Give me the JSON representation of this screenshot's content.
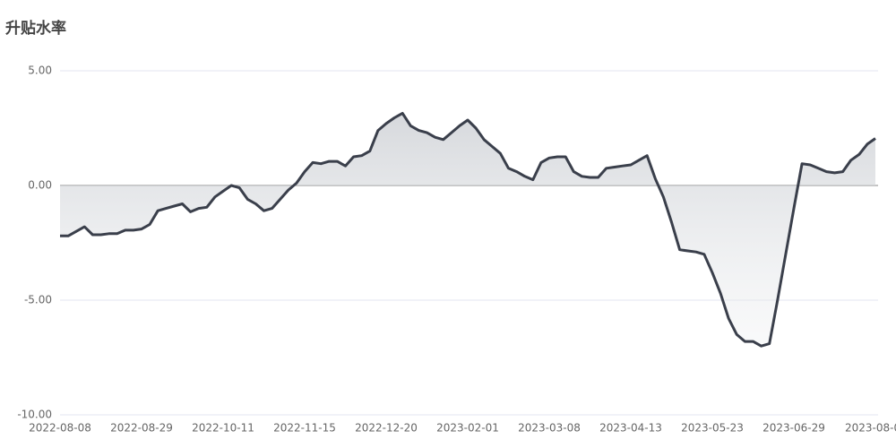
{
  "chart_data": {
    "type": "area-line",
    "title": "升贴水率",
    "categories": [
      "2022-08-08",
      null,
      null,
      null,
      null,
      null,
      null,
      null,
      null,
      null,
      "2022-08-29",
      null,
      null,
      null,
      null,
      null,
      null,
      null,
      null,
      null,
      "2022-10-11",
      null,
      null,
      null,
      null,
      null,
      null,
      null,
      null,
      null,
      "2022-11-15",
      null,
      null,
      null,
      null,
      null,
      null,
      null,
      null,
      null,
      "2022-12-20",
      null,
      null,
      null,
      null,
      null,
      null,
      null,
      null,
      null,
      "2023-02-01",
      null,
      null,
      null,
      null,
      null,
      null,
      null,
      null,
      null,
      "2023-03-08",
      null,
      null,
      null,
      null,
      null,
      null,
      null,
      null,
      null,
      "2023-04-13",
      null,
      null,
      null,
      null,
      null,
      null,
      null,
      null,
      null,
      "2023-05-23",
      null,
      null,
      null,
      null,
      null,
      null,
      null,
      null,
      null,
      "2023-06-29",
      null,
      null,
      null,
      null,
      null,
      null,
      null,
      null,
      null,
      "2023-08-0"
    ],
    "values": [
      -2.2,
      -2.2,
      -2.0,
      -1.8,
      -2.15,
      -2.15,
      -2.1,
      -2.1,
      -1.95,
      -1.95,
      -1.9,
      -1.7,
      -1.1,
      -1.0,
      -0.9,
      -0.8,
      -1.15,
      -1.0,
      -0.95,
      -0.5,
      -0.25,
      0.0,
      -0.1,
      -0.6,
      -0.8,
      -1.1,
      -1.0,
      -0.6,
      -0.2,
      0.1,
      0.6,
      1.0,
      0.95,
      1.05,
      1.05,
      0.85,
      1.25,
      1.3,
      1.5,
      2.4,
      2.7,
      2.95,
      3.15,
      2.6,
      2.4,
      2.3,
      2.1,
      2.0,
      2.3,
      2.6,
      2.85,
      2.5,
      2.0,
      1.7,
      1.4,
      0.75,
      0.6,
      0.4,
      0.25,
      1.0,
      1.2,
      1.25,
      1.25,
      0.6,
      0.4,
      0.35,
      0.35,
      0.75,
      0.8,
      0.85,
      0.9,
      1.1,
      1.3,
      0.3,
      -0.5,
      -1.6,
      -2.8,
      -2.85,
      -2.9,
      -3.0,
      -3.8,
      -4.7,
      -5.8,
      -6.5,
      -6.8,
      -6.8,
      -7.0,
      -6.9,
      -5.0,
      -3.0,
      -1.0,
      0.95,
      0.9,
      0.75,
      0.6,
      0.55,
      0.6,
      1.1,
      1.35,
      1.8,
      2.05
    ],
    "color": "#3a3f4b",
    "ylim": [
      -10,
      5
    ],
    "yticks": [
      {
        "value": -10,
        "label": "-10.00"
      },
      {
        "value": -5,
        "label": "-5.00"
      },
      {
        "value": 0,
        "label": "0.00"
      },
      {
        "value": 5,
        "label": "5.00"
      }
    ],
    "grid": true
  }
}
